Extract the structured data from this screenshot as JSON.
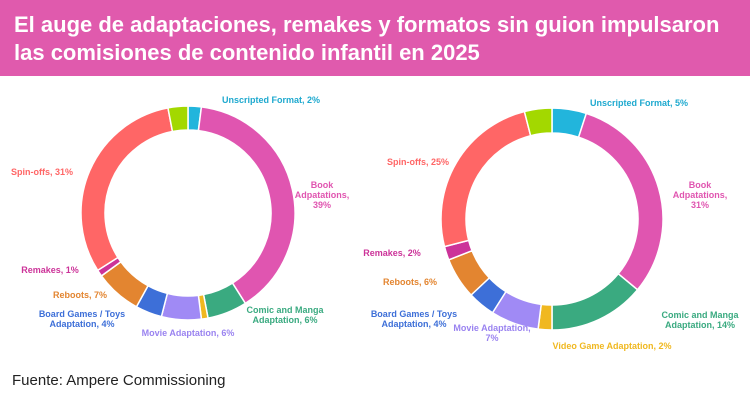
{
  "title": "El auge de adaptaciones, remakes y formatos sin guion impulsaron las comisiones de contenido infantil en 2025",
  "footer": "Fuente: Ampere Commissioning",
  "chart_data": [
    {
      "type": "pie",
      "donut": true,
      "start": "12 o'clock",
      "direction": "clockwise",
      "slices": [
        {
          "label": "Unscripted Format, 2%",
          "value": 2,
          "color": "#22b5dc"
        },
        {
          "label": "Book Adpatations, 39%",
          "value": 39,
          "color": "#e055b0"
        },
        {
          "label": "Comic and Manga Adaptation, 6%",
          "value": 6,
          "color": "#3aaa80"
        },
        {
          "label": "",
          "value": 1,
          "color": "#f0b820"
        },
        {
          "label": "Movie Adaptation, 6%",
          "value": 6,
          "color": "#a08af5"
        },
        {
          "label": "Board Games / Toys Adaptation, 4%",
          "value": 4,
          "color": "#3d6fd8"
        },
        {
          "label": "Reboots, 7%",
          "value": 7,
          "color": "#e38530"
        },
        {
          "label": "Remakes, 1%",
          "value": 1,
          "color": "#cc3399"
        },
        {
          "label": "Spin-offs, 31%",
          "value": 31,
          "color": "#ff6666"
        },
        {
          "label": "",
          "value": 3,
          "color": "#a3d800"
        }
      ]
    },
    {
      "type": "pie",
      "donut": true,
      "start": "12 o'clock",
      "direction": "clockwise",
      "slices": [
        {
          "label": "Unscripted Format, 5%",
          "value": 5,
          "color": "#22b5dc"
        },
        {
          "label": "Book Adpatations, 31%",
          "value": 31,
          "color": "#e055b0"
        },
        {
          "label": "Comic and Manga Adaptation, 14%",
          "value": 14,
          "color": "#3aaa80"
        },
        {
          "label": "Video Game Adaptation, 2%",
          "value": 2,
          "color": "#f0b820"
        },
        {
          "label": "Movie Adaptation, 7%",
          "value": 7,
          "color": "#a08af5"
        },
        {
          "label": "Board Games / Toys Adaptation, 4%",
          "value": 4,
          "color": "#3d6fd8"
        },
        {
          "label": "Reboots, 6%",
          "value": 6,
          "color": "#e38530"
        },
        {
          "label": "Remakes, 2%",
          "value": 2,
          "color": "#cc3399"
        },
        {
          "label": "Spin-offs, 25%",
          "value": 25,
          "color": "#ff6666"
        },
        {
          "label": "",
          "value": 4,
          "color": "#a3d800"
        }
      ]
    }
  ]
}
